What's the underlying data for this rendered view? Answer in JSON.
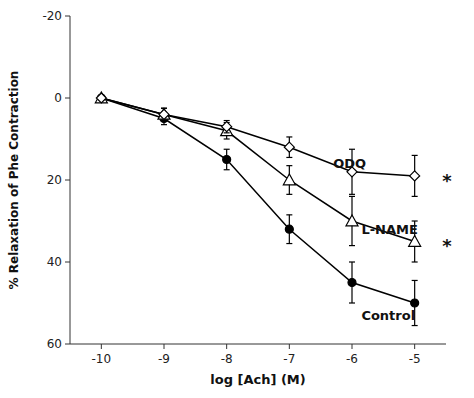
{
  "chart_data": {
    "type": "line",
    "x_label": "log [Ach] (M)",
    "y_label": "% Relaxation of Phe Contraction",
    "x": [
      -10,
      -9,
      -8,
      -7,
      -6,
      -5
    ],
    "xlim": [
      -10.5,
      -4.5
    ],
    "xticks": [
      -10,
      -9,
      -8,
      -7,
      -6,
      -5
    ],
    "ylim": [
      60,
      -20
    ],
    "yticks": [
      -20,
      0,
      20,
      40,
      60
    ],
    "grid": false,
    "color": "#000000",
    "series": [
      {
        "marker": "filled-circle",
        "values": [
          0,
          5,
          15,
          32,
          45,
          50
        ],
        "errors": [
          0.5,
          1.5,
          2.5,
          3.5,
          5.0,
          5.5
        ]
      },
      {
        "marker": "open-triangle",
        "values": [
          0,
          4,
          8,
          20,
          30,
          35
        ],
        "errors": [
          0.5,
          1.5,
          2.0,
          3.5,
          6.0,
          5.0
        ]
      },
      {
        "marker": "open-diamond",
        "values": [
          0,
          4,
          7,
          12,
          18,
          19
        ],
        "errors": [
          0.5,
          1.5,
          1.5,
          2.5,
          5.5,
          5.0
        ]
      }
    ],
    "annotations": [
      {
        "text": "ODQ",
        "x": -6.3,
        "y": 16
      },
      {
        "text": "*",
        "x": -4.56,
        "y": 19
      },
      {
        "text": "L-NAME",
        "x": -5.85,
        "y": 32
      },
      {
        "text": "*",
        "x": -4.56,
        "y": 35
      },
      {
        "text": "Control",
        "x": -5.85,
        "y": 53
      }
    ]
  }
}
